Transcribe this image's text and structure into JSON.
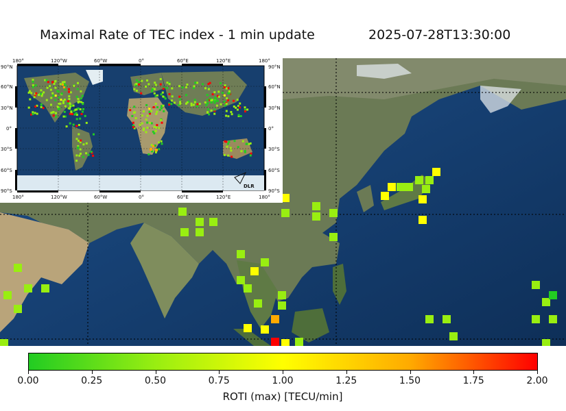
{
  "title": "Maximal Rate of TEC index - 1 min update",
  "timestamp": "2025-07-28T13:30:00",
  "colorbar": {
    "label": "ROTI (max) [TECU/min]",
    "ticks": [
      "0.00",
      "0.25",
      "0.50",
      "0.75",
      "1.00",
      "1.25",
      "1.50",
      "1.75",
      "2.00"
    ],
    "range": [
      0,
      2
    ],
    "colors": [
      "#22cc22",
      "#99ee11",
      "#ffff00",
      "#ffaa00",
      "#ff0000"
    ]
  },
  "inset": {
    "lon_labels": [
      "180°",
      "120°W",
      "60°W",
      "0°",
      "60°E",
      "120°E",
      "180°"
    ],
    "lat_labels": [
      "90°N",
      "60°N",
      "30°N",
      "0°",
      "30°S",
      "60°S",
      "90°S"
    ],
    "logo_text": "DLR"
  },
  "map": {
    "land_color": "#6b7a4e",
    "ocean_color": "#123a66"
  }
}
